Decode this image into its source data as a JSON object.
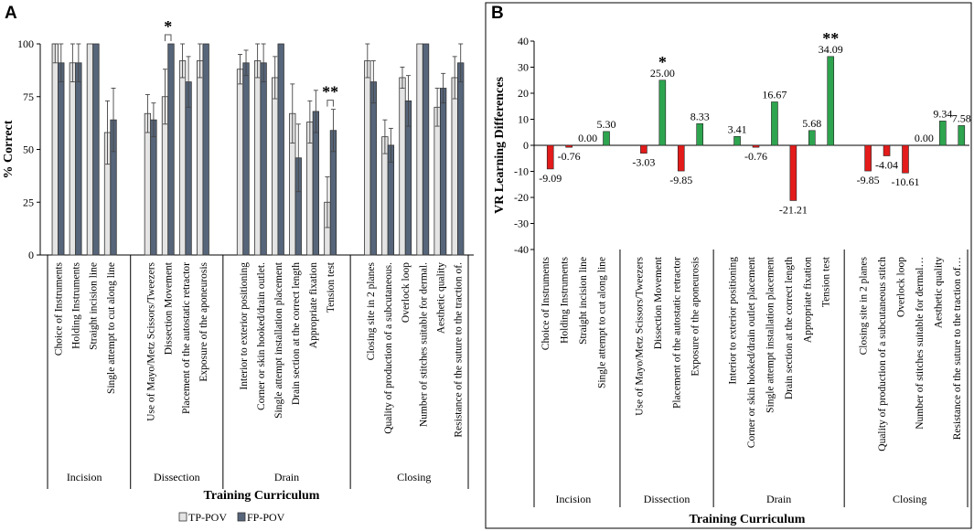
{
  "chart_data": [
    {
      "type": "bar",
      "panel_label": "A",
      "title": "",
      "ylabel": "% Correct",
      "xlabel": "Training Curriculum",
      "ylim": [
        0,
        100
      ],
      "yticks": [
        0,
        25,
        50,
        75,
        100
      ],
      "grid": false,
      "legend": {
        "position": "bottom-center",
        "entries": [
          "TP-POV",
          "FP-POV"
        ]
      },
      "colors": {
        "TP-POV": "#e4e4e4",
        "FP-POV": "#56657a"
      },
      "groups": [
        {
          "label": "Incision",
          "categories": [
            "Choice of Instruments",
            "Holding Instruments",
            "Straight incision line",
            "Single attempt to cut along line"
          ]
        },
        {
          "label": "Dissection",
          "categories": [
            "Use of Mayo/Metz Scissors/Tweezers",
            "Dissection Movement",
            "Placement of the autostatic retractor",
            "Exposure of the aponeurosis"
          ]
        },
        {
          "label": "Drain",
          "categories": [
            "Interior to exterior positioning",
            "Corner or skin hooked/drain outlet.",
            "Single attempt installation placement",
            "Drain section at the correct length",
            "Appropriate fixation",
            "Tension test"
          ]
        },
        {
          "label": "Closing",
          "categories": [
            "Closing site in 2 planes",
            "Quality of production of a subcutaneous.",
            "Overlock loop",
            "Number of stitches suitable for dermal.",
            "Aesthetic quality",
            "Resistance of the suture to the traction of."
          ]
        }
      ],
      "series": [
        {
          "name": "TP-POV",
          "values": [
            100,
            91,
            100,
            58,
            67,
            75,
            92,
            92,
            88,
            92,
            84,
            67,
            63,
            25,
            92,
            56,
            84,
            100,
            70,
            84
          ],
          "errors": [
            9,
            9,
            0,
            15,
            9,
            13,
            8,
            8,
            7,
            8,
            10,
            14,
            10,
            12,
            8,
            8,
            5,
            0,
            9,
            10
          ]
        },
        {
          "name": "FP-POV",
          "values": [
            91,
            91,
            100,
            64,
            64,
            100,
            82,
            100,
            91,
            91,
            100,
            46,
            68,
            59,
            82,
            52,
            73,
            100,
            79,
            91
          ],
          "errors": [
            9,
            9,
            0,
            15,
            8,
            0,
            12,
            0,
            6,
            9,
            0,
            16,
            10,
            10,
            10,
            8,
            12,
            0,
            7,
            9
          ]
        }
      ],
      "annotations": [
        {
          "category": "Dissection Movement",
          "text": "*"
        },
        {
          "category": "Tension test",
          "text": "**"
        }
      ]
    },
    {
      "type": "bar",
      "panel_label": "B",
      "title": "",
      "ylabel": "VR Learning Differences",
      "xlabel": "Training Curriculum",
      "ylim": [
        -40,
        40
      ],
      "yticks": [
        -40,
        -30,
        -20,
        -10,
        0,
        10,
        20,
        30,
        40
      ],
      "grid": false,
      "colors": {
        "positive": "#2ea44f",
        "negative": "#e31b1b"
      },
      "groups": [
        {
          "label": "Incision",
          "categories": [
            "Choice of Instruments",
            "Holding Instruments",
            "Straight incision line",
            "Single attempt to cut along line"
          ]
        },
        {
          "label": "Dissection",
          "categories": [
            "Use of Mayo/Metz Scissors/Tweezers",
            "Dissection Movement",
            "Placement of the autostatic retractor",
            "Exposure of the aponeurosis"
          ]
        },
        {
          "label": "Drain",
          "categories": [
            "Interior to exterior positioning",
            "Corner or skin hooked/drain outlet placement",
            "Single attempt installation placement",
            "Drain section at the correct length",
            "Appropriate fixation",
            "Tension test"
          ]
        },
        {
          "label": "Closing",
          "categories": [
            "Closing site in 2 planes",
            "Quality of production of a subcutaneous stitch",
            "Overlock loop",
            "Number of stitches suitable for dermal…",
            "Aesthetic quality",
            "Resistance of the suture to the traction of…"
          ]
        }
      ],
      "values": [
        -9.09,
        -0.76,
        0.0,
        5.3,
        -3.03,
        25.0,
        -9.85,
        8.33,
        3.41,
        -0.76,
        16.67,
        -21.21,
        5.68,
        34.09,
        -9.85,
        -4.04,
        -10.61,
        0.0,
        9.34,
        7.58
      ],
      "data_labels": [
        "-9.09",
        "-0.76",
        "0.00",
        "5.30",
        "-3.03",
        "25.00",
        "-9.85",
        "8.33",
        "3.41",
        "-0.76",
        "16.67",
        "-21.21",
        "5.68",
        "34.09",
        "-9.85",
        "-4.04",
        "-10.61",
        "0.00",
        "9.34",
        "7.58"
      ],
      "annotations": [
        {
          "category": "Dissection Movement",
          "text": "*"
        },
        {
          "category": "Tension test",
          "text": "**"
        }
      ]
    }
  ]
}
